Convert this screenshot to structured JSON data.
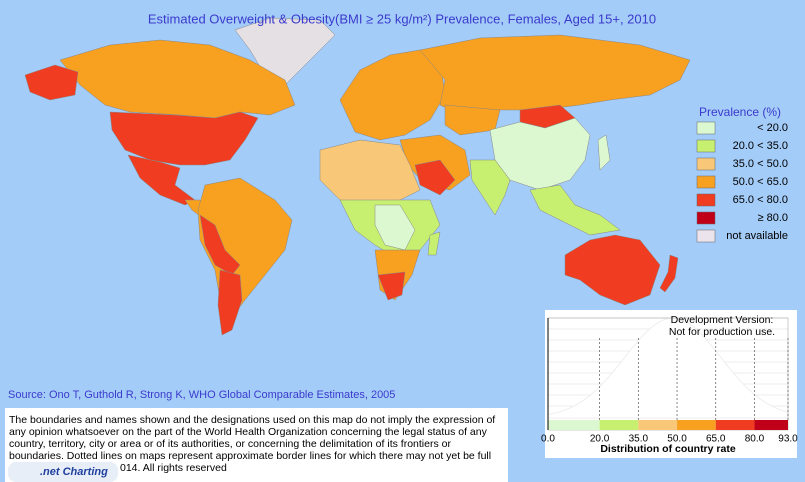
{
  "header": {
    "title": "Estimated Overweight & Obesity(BMI ≥ 25 kg/m²) Prevalence, Females, Aged 15+, 2010"
  },
  "legend": {
    "title": "Prevalence (%)",
    "items": [
      {
        "label": "< 20.0",
        "color": "#dcf8d0"
      },
      {
        "label": "20.0 < 35.0",
        "color": "#c8f070"
      },
      {
        "label": "35.0 < 50.0",
        "color": "#f8c878"
      },
      {
        "label": "50.0 < 65.0",
        "color": "#f8a020"
      },
      {
        "label": "65.0 < 80.0",
        "color": "#f03c20"
      },
      {
        "label": "≥ 80.0",
        "color": "#c00018"
      },
      {
        "label": "not available",
        "color": "#ece4ec"
      }
    ]
  },
  "source": "Source: Ono T, Guthold R, Strong K, WHO Global Comparable Estimates, 2005",
  "disclaimer": [
    "The boundaries and names shown and the designations used on this map do not imply the expression of",
    "any opinion whatsoever on the part of the World Health Organization concerning the legal status of any",
    "country, territory, city or area or of its authorities, or concerning the delimitation of its frontiers or",
    "boundaries. Dotted lines on maps represent approximate border lines for which there may not yet be full",
    "014. All rights reserved"
  ],
  "logo": ".net Charting",
  "distribution": {
    "watermark": [
      "Development Version:",
      "Not for production use."
    ],
    "xlabel": "Distribution of country rate",
    "xlim": [
      0,
      93
    ],
    "xticks": [
      {
        "value": 0,
        "label": "0.0"
      },
      {
        "value": 20,
        "label": "20.0"
      },
      {
        "value": 35,
        "label": "35.0"
      },
      {
        "value": 50,
        "label": "50.0"
      },
      {
        "value": 65,
        "label": "65.0"
      },
      {
        "value": 80,
        "label": "80.0"
      },
      {
        "value": 93,
        "label": "93.0"
      }
    ]
  }
}
